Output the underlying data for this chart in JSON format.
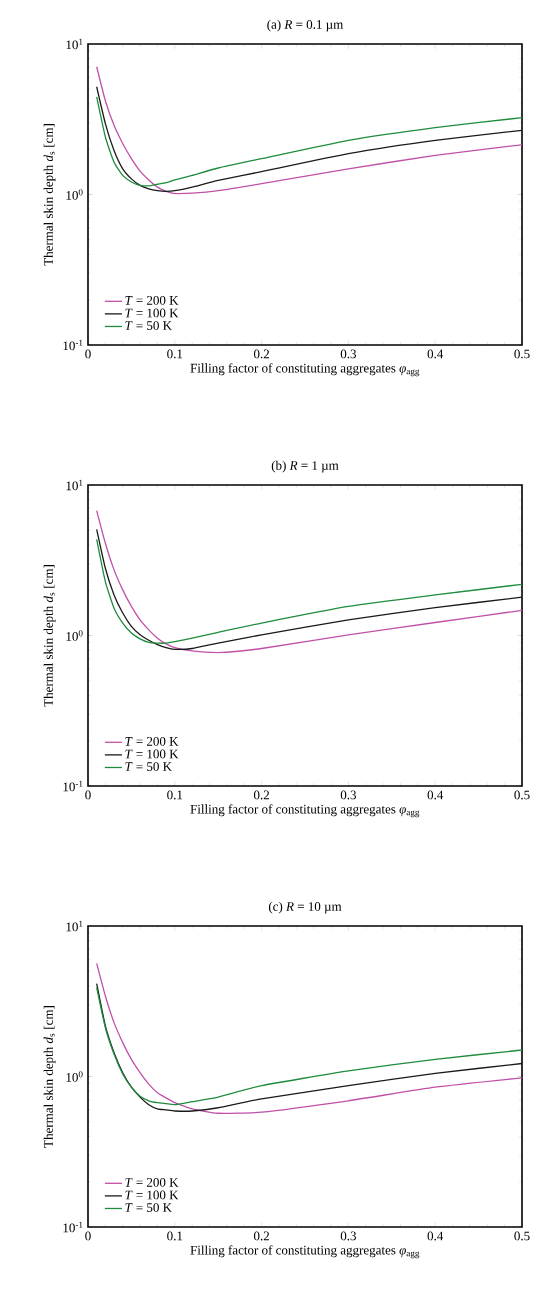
{
  "chart_data": [
    {
      "type": "line",
      "title": "(a) *R* = 0.1 µm",
      "xlabel": "Filling factor of constituting aggregates *φ*$_{agg}$",
      "ylabel": "Thermal skin depth *d*$_{s}$ [cm]",
      "x": [
        0.01,
        0.02,
        0.03,
        0.04,
        0.05,
        0.06,
        0.07,
        0.08,
        0.09,
        0.1,
        0.12,
        0.15,
        0.2,
        0.3,
        0.4,
        0.5
      ],
      "series": [
        {
          "name": "*T* = 200 K",
          "color": "#c050a8",
          "values": [
            7.06,
            4.2,
            2.88,
            2.18,
            1.73,
            1.43,
            1.25,
            1.12,
            1.05,
            1.015,
            1.02,
            1.06,
            1.18,
            1.48,
            1.82,
            2.14
          ]
        },
        {
          "name": "*T* = 100 K",
          "color": "#1a1a1a",
          "values": [
            5.2,
            2.96,
            1.96,
            1.48,
            1.27,
            1.15,
            1.09,
            1.06,
            1.05,
            1.06,
            1.12,
            1.24,
            1.42,
            1.87,
            2.29,
            2.67
          ]
        },
        {
          "name": "*T* = 50 K",
          "color": "#1e8c3c",
          "values": [
            4.45,
            2.41,
            1.64,
            1.34,
            1.21,
            1.15,
            1.14,
            1.17,
            1.2,
            1.25,
            1.34,
            1.5,
            1.73,
            2.29,
            2.78,
            3.24
          ]
        }
      ],
      "xlim": [
        0,
        0.5
      ],
      "ylim": [
        0.1,
        10
      ],
      "xticks": [
        0,
        0.1,
        0.2,
        0.3,
        0.4,
        0.5
      ],
      "yticks": [
        {
          "value": 0.1,
          "label": "10$^{-1}$"
        },
        {
          "value": 1,
          "label": "10$^{0}$"
        },
        {
          "value": 10,
          "label": "10$^{1}$"
        }
      ],
      "log": "y",
      "legend": "bottom left"
    },
    {
      "type": "line",
      "title": "(b) *R* = 1 µm",
      "xlabel": "Filling factor of constituting aggregates *φ*$_{agg}$",
      "ylabel": "Thermal skin depth *d*$_{s}$ [cm]",
      "x": [
        0.01,
        0.02,
        0.03,
        0.04,
        0.05,
        0.06,
        0.07,
        0.08,
        0.09,
        0.1,
        0.12,
        0.15,
        0.2,
        0.3,
        0.4,
        0.5
      ],
      "series": [
        {
          "name": "*T* = 200 K",
          "color": "#c050a8",
          "values": [
            6.76,
            4.1,
            2.73,
            2.01,
            1.56,
            1.27,
            1.09,
            0.96,
            0.88,
            0.83,
            0.79,
            0.77,
            0.82,
            1.01,
            1.22,
            1.47
          ]
        },
        {
          "name": "*T* = 100 K",
          "color": "#1a1a1a",
          "values": [
            5.08,
            2.8,
            1.86,
            1.41,
            1.15,
            1.01,
            0.93,
            0.87,
            0.83,
            0.81,
            0.82,
            0.89,
            1.01,
            1.27,
            1.53,
            1.8
          ]
        },
        {
          "name": "*T* = 50 K",
          "color": "#1e8c3c",
          "values": [
            4.36,
            2.28,
            1.52,
            1.21,
            1.04,
            0.95,
            0.9,
            0.89,
            0.89,
            0.91,
            0.96,
            1.05,
            1.21,
            1.56,
            1.86,
            2.19
          ]
        }
      ],
      "xlim": [
        0,
        0.5
      ],
      "ylim": [
        0.1,
        10
      ],
      "xticks": [
        0,
        0.1,
        0.2,
        0.3,
        0.4,
        0.5
      ],
      "yticks": [
        {
          "value": 0.1,
          "label": "10$^{-1}$"
        },
        {
          "value": 1,
          "label": "10$^{0}$"
        },
        {
          "value": 10,
          "label": "10$^{1}$"
        }
      ],
      "log": "y",
      "legend": "bottom left"
    },
    {
      "type": "line",
      "title": "(c) *R* = 10 µm",
      "xlabel": "Filling factor of constituting aggregates *φ*$_{agg}$",
      "ylabel": "Thermal skin depth *d*$_{s}$ [cm]",
      "x": [
        0.01,
        0.02,
        0.03,
        0.04,
        0.05,
        0.06,
        0.07,
        0.08,
        0.09,
        0.1,
        0.12,
        0.15,
        0.2,
        0.3,
        0.4,
        0.5
      ],
      "series": [
        {
          "name": "*T* = 200 K",
          "color": "#c050a8",
          "values": [
            5.65,
            3.43,
            2.28,
            1.68,
            1.3,
            1.06,
            0.89,
            0.78,
            0.72,
            0.67,
            0.61,
            0.57,
            0.58,
            0.69,
            0.85,
            0.98
          ]
        },
        {
          "name": "*T* = 100 K",
          "color": "#1a1a1a",
          "values": [
            4.14,
            2.17,
            1.44,
            1.06,
            0.85,
            0.73,
            0.65,
            0.61,
            0.6,
            0.59,
            0.59,
            0.62,
            0.71,
            0.87,
            1.05,
            1.22
          ]
        },
        {
          "name": "*T* = 50 K",
          "color": "#1e8c3c",
          "values": [
            3.9,
            2.11,
            1.41,
            1.04,
            0.85,
            0.74,
            0.69,
            0.67,
            0.66,
            0.65,
            0.68,
            0.73,
            0.87,
            1.09,
            1.3,
            1.5
          ]
        }
      ],
      "xlim": [
        0,
        0.5
      ],
      "ylim": [
        0.1,
        10
      ],
      "xticks": [
        0,
        0.1,
        0.2,
        0.3,
        0.4,
        0.5
      ],
      "yticks": [
        {
          "value": 0.1,
          "label": "10$^{-1}$"
        },
        {
          "value": 1,
          "label": "10$^{0}$"
        },
        {
          "value": 10,
          "label": "10$^{1}$"
        }
      ],
      "log": "y",
      "legend": "bottom left"
    }
  ]
}
